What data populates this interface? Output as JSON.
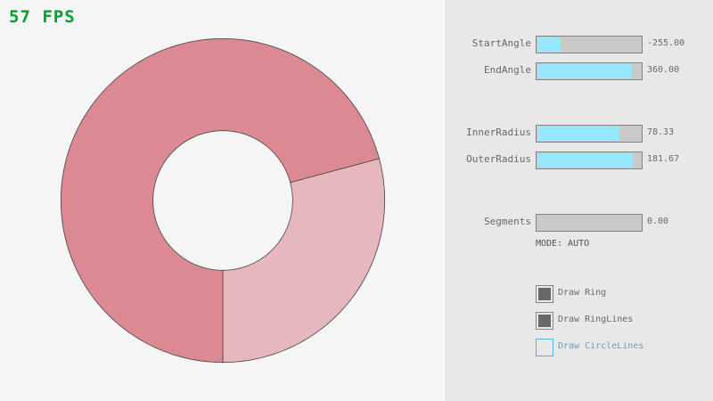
{
  "fps": {
    "text": "57 FPS",
    "color": "#009e2f"
  },
  "ring": {
    "start_angle": -255.0,
    "end_angle": 360.0,
    "inner_radius": 78.33,
    "outer_radius": 181.67,
    "colors": {
      "single_layer": "#e6b8bd",
      "overlap": "#db8a93",
      "lines": "#444444"
    }
  },
  "controls": {
    "sliders": [
      {
        "label": "StartAngle",
        "value": "-255.00",
        "fill": 0.217
      },
      {
        "label": "EndAngle",
        "value": "360.00",
        "fill": 0.9
      },
      {
        "label": "InnerRadius",
        "value": "78.33",
        "fill": 0.783
      },
      {
        "label": "OuterRadius",
        "value": "181.67",
        "fill": 0.908
      },
      {
        "label": "Segments",
        "value": "0.00",
        "fill": 0.0
      }
    ],
    "mode": "MODE: AUTO",
    "checkboxes": [
      {
        "label": "Draw Ring",
        "checked": true
      },
      {
        "label": "Draw RingLines",
        "checked": true
      },
      {
        "label": "Draw CircleLines",
        "checked": false
      }
    ]
  }
}
